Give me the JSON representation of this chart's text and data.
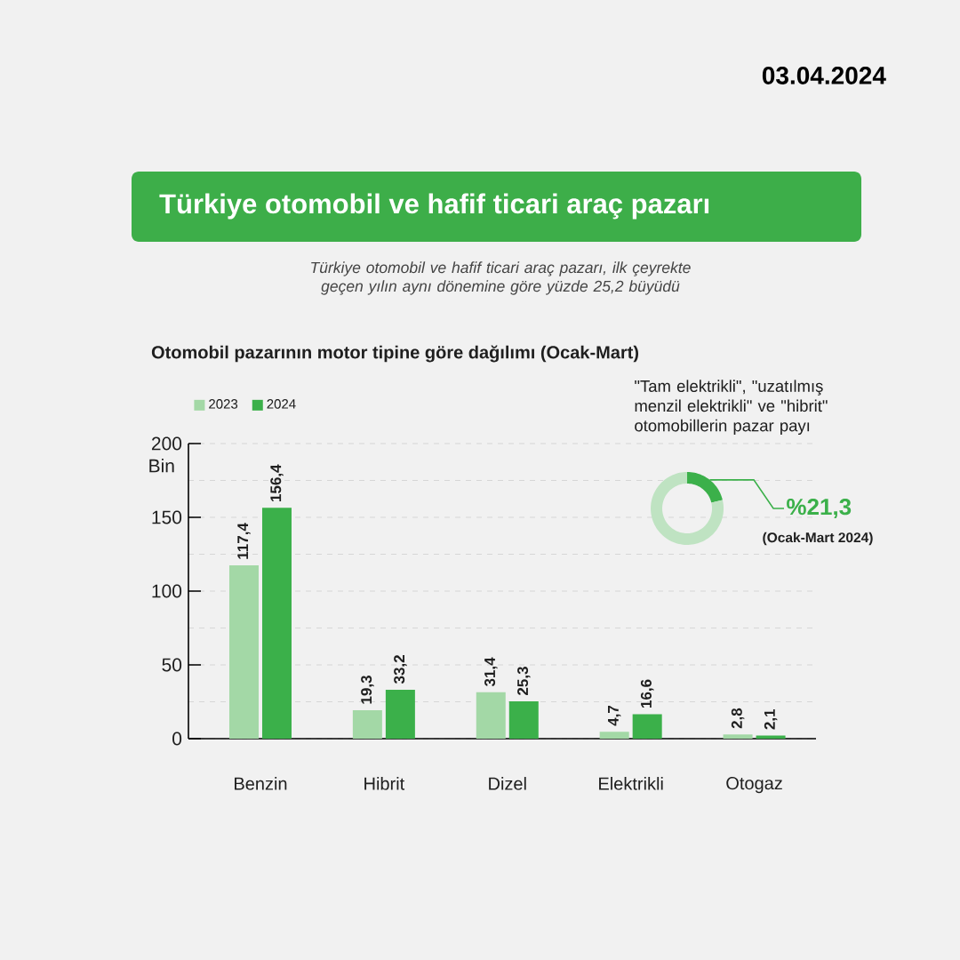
{
  "chart_data": [
    {
      "type": "bar",
      "title": "Türkiye otomobil ve hafif ticari araç pazarı",
      "subtitle": "Türkiye otomobil ve hafif ticari araç pazarı, ilk çeyrekte geçen yılın aynı dönemine göre yüzde 25,2 büyüdü",
      "annotations": [
        "03.04.2024",
        "Otomobil pazarının motor tipine göre dağılımı (Ocak-Mart)"
      ],
      "ylabel": "Bin",
      "categories": [
        "Benzin",
        "Hibrit",
        "Dizel",
        "Elektrikli",
        "Otogaz"
      ],
      "series": [
        {
          "name": "2023",
          "color": "#a3d8a6",
          "values": [
            117.4,
            19.3,
            31.4,
            4.7,
            2.8
          ],
          "value_labels": [
            "117,4",
            "19,3",
            "31,4",
            "4,7",
            "2,8"
          ]
        },
        {
          "name": "2024",
          "color": "#3bb04a",
          "values": [
            156.4,
            33.2,
            25.3,
            16.6,
            2.1
          ],
          "value_labels": [
            "156,4",
            "33,2",
            "25,3",
            "16,6",
            "2,1"
          ]
        }
      ],
      "ylim": [
        0,
        200
      ],
      "yticks": [
        0,
        {
          "value": 25,
          "label": null
        },
        50,
        {
          "value": 75,
          "label": null
        },
        100,
        {
          "value": 125,
          "label": null
        },
        150,
        {
          "value": 175,
          "label": null
        },
        200
      ],
      "grid": "y",
      "legend": "top left"
    },
    {
      "type": "donut",
      "title": "\"Tam elektrikli\", \"uzatılmış menzil elektrikli\" ve \"hibrit\" otomobillerin pazar payı",
      "categories": [
        null,
        null
      ],
      "values": [
        21.3,
        78.7
      ],
      "colors": [
        "#3bb04a",
        "#bfe3c2"
      ],
      "value_labels": [
        "%21,3",
        null
      ],
      "annotations": [
        "(Ocak-Mart 2024)"
      ]
    }
  ]
}
